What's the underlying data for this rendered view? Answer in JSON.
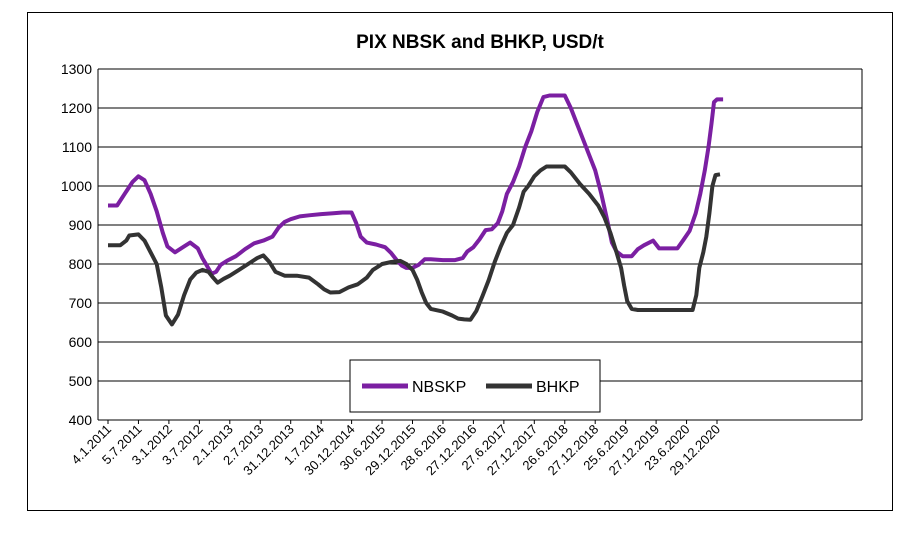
{
  "chart_data": {
    "type": "line",
    "title": "PIX NBSK and BHKP, USD/t",
    "xlabel": "",
    "ylabel": "",
    "ylim": [
      400,
      1300
    ],
    "yticks": [
      "400",
      "500",
      "600",
      "700",
      "800",
      "900",
      "1000",
      "1100",
      "1200",
      "1300"
    ],
    "xticks": [
      "4.1.2011",
      "5.7.2011",
      "3.1.2012",
      "3.7.2012",
      "2.1.2013",
      "2.7.2013",
      "31.12.2013",
      "1.7.2014",
      "30.12.2014",
      "30.6.2015",
      "29.12.2015",
      "28.6.2016",
      "27.12.2016",
      "27.6.2017",
      "27.12.2017",
      "26.6.2018",
      "27.12.2018",
      "25.6.2019",
      "27.12.2019",
      "23.6.2020",
      "29.12.2020"
    ],
    "grid": true,
    "legend": "bottom-center",
    "series": [
      {
        "name": "NBSKP",
        "color": "#7B1FA2",
        "points": [
          [
            0,
            950
          ],
          [
            0.3,
            950
          ],
          [
            0.55,
            980
          ],
          [
            0.8,
            1010
          ],
          [
            1.0,
            1025
          ],
          [
            1.2,
            1015
          ],
          [
            1.4,
            980
          ],
          [
            1.6,
            935
          ],
          [
            1.8,
            880
          ],
          [
            1.95,
            845
          ],
          [
            2.2,
            830
          ],
          [
            2.5,
            845
          ],
          [
            2.7,
            855
          ],
          [
            2.95,
            840
          ],
          [
            3.1,
            815
          ],
          [
            3.25,
            795
          ],
          [
            3.4,
            775
          ],
          [
            3.55,
            780
          ],
          [
            3.7,
            798
          ],
          [
            3.9,
            808
          ],
          [
            4.2,
            820
          ],
          [
            4.5,
            838
          ],
          [
            4.8,
            853
          ],
          [
            5.1,
            860
          ],
          [
            5.4,
            870
          ],
          [
            5.6,
            893
          ],
          [
            5.8,
            908
          ],
          [
            6.0,
            915
          ],
          [
            6.3,
            922
          ],
          [
            6.6,
            925
          ],
          [
            7.0,
            928
          ],
          [
            7.4,
            930
          ],
          [
            7.7,
            932
          ],
          [
            8.0,
            932
          ],
          [
            8.15,
            905
          ],
          [
            8.3,
            870
          ],
          [
            8.5,
            855
          ],
          [
            8.8,
            850
          ],
          [
            9.1,
            843
          ],
          [
            9.3,
            828
          ],
          [
            9.5,
            808
          ],
          [
            9.65,
            796
          ],
          [
            9.8,
            790
          ],
          [
            10.0,
            790
          ],
          [
            10.2,
            798
          ],
          [
            10.4,
            812
          ],
          [
            10.6,
            812
          ],
          [
            11.0,
            810
          ],
          [
            11.4,
            810
          ],
          [
            11.65,
            815
          ],
          [
            11.8,
            832
          ],
          [
            12.0,
            843
          ],
          [
            12.2,
            863
          ],
          [
            12.4,
            887
          ],
          [
            12.6,
            889
          ],
          [
            12.8,
            905
          ],
          [
            12.95,
            935
          ],
          [
            13.1,
            980
          ],
          [
            13.3,
            1010
          ],
          [
            13.5,
            1050
          ],
          [
            13.7,
            1100
          ],
          [
            13.9,
            1140
          ],
          [
            14.1,
            1190
          ],
          [
            14.3,
            1228
          ],
          [
            14.5,
            1232
          ],
          [
            14.7,
            1232
          ],
          [
            15.0,
            1232
          ],
          [
            15.2,
            1200
          ],
          [
            15.4,
            1160
          ],
          [
            15.6,
            1120
          ],
          [
            15.8,
            1080
          ],
          [
            16.0,
            1040
          ],
          [
            16.2,
            980
          ],
          [
            16.4,
            910
          ],
          [
            16.55,
            855
          ],
          [
            16.7,
            832
          ],
          [
            16.9,
            820
          ],
          [
            17.2,
            820
          ],
          [
            17.4,
            838
          ],
          [
            17.6,
            848
          ],
          [
            17.9,
            860
          ],
          [
            18.1,
            840
          ],
          [
            18.4,
            840
          ],
          [
            18.7,
            840
          ],
          [
            18.9,
            862
          ],
          [
            19.1,
            885
          ],
          [
            19.3,
            930
          ],
          [
            19.45,
            980
          ],
          [
            19.6,
            1040
          ],
          [
            19.72,
            1100
          ],
          [
            19.82,
            1160
          ],
          [
            19.9,
            1215
          ],
          [
            20.0,
            1222
          ],
          [
            20.2,
            1222
          ]
        ]
      },
      {
        "name": "BHKP",
        "color": "#333333",
        "points": [
          [
            0,
            848
          ],
          [
            0.4,
            848
          ],
          [
            0.6,
            860
          ],
          [
            0.7,
            873
          ],
          [
            1.0,
            876
          ],
          [
            1.2,
            860
          ],
          [
            1.4,
            830
          ],
          [
            1.6,
            800
          ],
          [
            1.75,
            740
          ],
          [
            1.9,
            668
          ],
          [
            2.1,
            645
          ],
          [
            2.3,
            670
          ],
          [
            2.5,
            720
          ],
          [
            2.7,
            760
          ],
          [
            2.9,
            778
          ],
          [
            3.1,
            785
          ],
          [
            3.3,
            780
          ],
          [
            3.45,
            765
          ],
          [
            3.6,
            752
          ],
          [
            3.8,
            762
          ],
          [
            4.0,
            770
          ],
          [
            4.3,
            785
          ],
          [
            4.6,
            800
          ],
          [
            4.9,
            815
          ],
          [
            5.1,
            822
          ],
          [
            5.3,
            805
          ],
          [
            5.5,
            780
          ],
          [
            5.8,
            770
          ],
          [
            6.2,
            770
          ],
          [
            6.6,
            765
          ],
          [
            6.9,
            748
          ],
          [
            7.1,
            735
          ],
          [
            7.3,
            727
          ],
          [
            7.6,
            728
          ],
          [
            7.9,
            740
          ],
          [
            8.2,
            748
          ],
          [
            8.5,
            765
          ],
          [
            8.7,
            785
          ],
          [
            9.0,
            800
          ],
          [
            9.3,
            805
          ],
          [
            9.6,
            808
          ],
          [
            9.8,
            800
          ],
          [
            10.0,
            785
          ],
          [
            10.15,
            760
          ],
          [
            10.3,
            728
          ],
          [
            10.45,
            700
          ],
          [
            10.6,
            685
          ],
          [
            11.0,
            678
          ],
          [
            11.3,
            668
          ],
          [
            11.5,
            660
          ],
          [
            11.7,
            658
          ],
          [
            11.9,
            657
          ],
          [
            12.1,
            680
          ],
          [
            12.3,
            718
          ],
          [
            12.5,
            758
          ],
          [
            12.7,
            805
          ],
          [
            12.9,
            845
          ],
          [
            13.1,
            880
          ],
          [
            13.3,
            900
          ],
          [
            13.5,
            945
          ],
          [
            13.65,
            985
          ],
          [
            13.8,
            1000
          ],
          [
            14.0,
            1025
          ],
          [
            14.2,
            1040
          ],
          [
            14.4,
            1050
          ],
          [
            14.7,
            1050
          ],
          [
            15.0,
            1050
          ],
          [
            15.2,
            1035
          ],
          [
            15.5,
            1005
          ],
          [
            15.8,
            980
          ],
          [
            16.1,
            950
          ],
          [
            16.3,
            920
          ],
          [
            16.5,
            880
          ],
          [
            16.7,
            830
          ],
          [
            16.85,
            790
          ],
          [
            16.95,
            745
          ],
          [
            17.05,
            705
          ],
          [
            17.2,
            685
          ],
          [
            17.4,
            682
          ],
          [
            17.8,
            682
          ],
          [
            18.2,
            682
          ],
          [
            18.6,
            682
          ],
          [
            19.0,
            682
          ],
          [
            19.2,
            682
          ],
          [
            19.32,
            720
          ],
          [
            19.42,
            790
          ],
          [
            19.55,
            830
          ],
          [
            19.65,
            870
          ],
          [
            19.75,
            930
          ],
          [
            19.85,
            1000
          ],
          [
            19.95,
            1028
          ],
          [
            20.1,
            1030
          ]
        ]
      }
    ]
  }
}
